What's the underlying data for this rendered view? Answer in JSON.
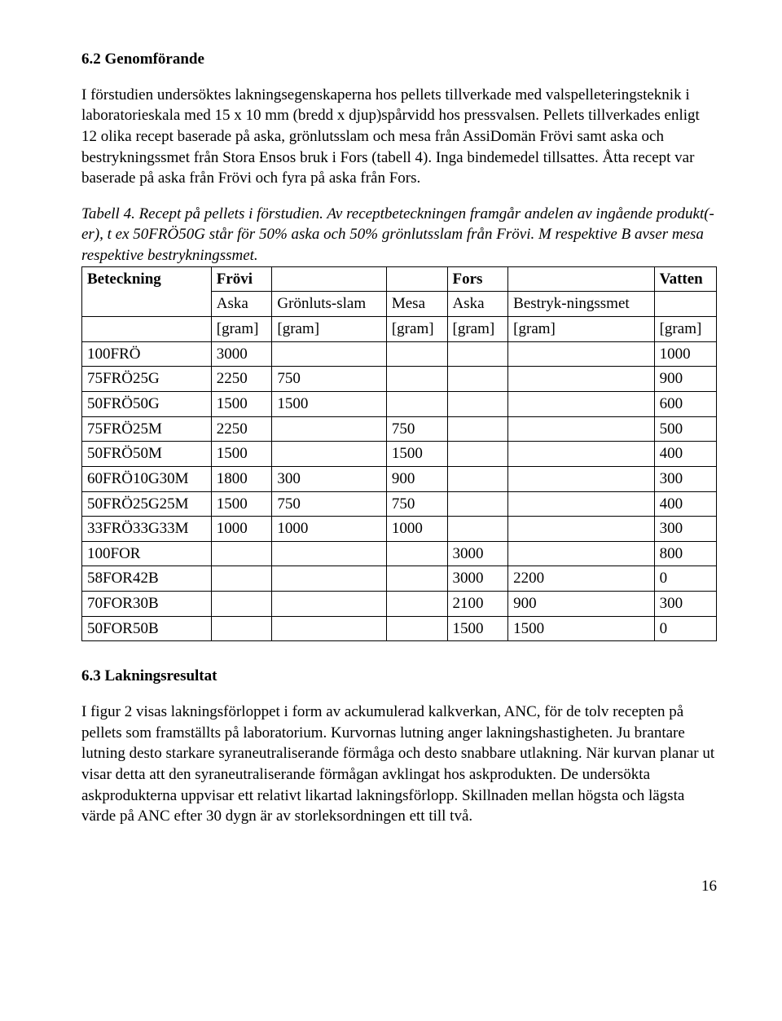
{
  "section1": {
    "heading": "6.2 Genomförande",
    "p1": "I förstudien undersöktes lakningsegenskaperna hos pellets tillverkade med valspelleteringsteknik i laboratorieskala med 15 x 10 mm (bredd x djup)spårvidd hos pressvalsen. Pellets tillverkades enligt 12 olika recept baserade på aska, grönlutsslam och mesa från AssiDomän Frövi samt aska och bestrykningssmet från Stora Ensos bruk i Fors (tabell 4). Inga bindemedel tillsattes. Åtta recept var baserade på aska från Frövi och fyra på aska från Fors.",
    "caption": "Tabell 4. Recept på pellets i förstudien. Av receptbeteckningen framgår andelen av ingående produkt(-er), t ex 50FRÖ50G står för 50% aska och 50% grönlutsslam från Frövi. M respektive B avser mesa respektive bestrykningssmet."
  },
  "table": {
    "header": {
      "beteckning": "Beteckning",
      "frovi": "Frövi",
      "fors": "Fors",
      "vatten": "Vatten",
      "aska": "Aska",
      "gronluts": "Grönluts-slam",
      "mesa": "Mesa",
      "bestryk": "Bestryk-ningssmet",
      "gram": "[gram]"
    },
    "rows": [
      {
        "b": "100FRÖ",
        "c1": "3000",
        "c2": "",
        "c3": "",
        "c4": "",
        "c5": "",
        "c6": "1000"
      },
      {
        "b": "75FRÖ25G",
        "c1": "2250",
        "c2": "750",
        "c3": "",
        "c4": "",
        "c5": "",
        "c6": "900"
      },
      {
        "b": "50FRÖ50G",
        "c1": "1500",
        "c2": "1500",
        "c3": "",
        "c4": "",
        "c5": "",
        "c6": "600"
      },
      {
        "b": "75FRÖ25M",
        "c1": "2250",
        "c2": "",
        "c3": "750",
        "c4": "",
        "c5": "",
        "c6": "500"
      },
      {
        "b": "50FRÖ50M",
        "c1": "1500",
        "c2": "",
        "c3": "1500",
        "c4": "",
        "c5": "",
        "c6": "400"
      },
      {
        "b": "60FRÖ10G30M",
        "c1": "1800",
        "c2": "300",
        "c3": "900",
        "c4": "",
        "c5": "",
        "c6": "300"
      },
      {
        "b": "50FRÖ25G25M",
        "c1": "1500",
        "c2": "750",
        "c3": "750",
        "c4": "",
        "c5": "",
        "c6": "400"
      },
      {
        "b": "33FRÖ33G33M",
        "c1": "1000",
        "c2": "1000",
        "c3": "1000",
        "c4": "",
        "c5": "",
        "c6": "300"
      },
      {
        "b": "100FOR",
        "c1": "",
        "c2": "",
        "c3": "",
        "c4": "3000",
        "c5": "",
        "c6": "800"
      },
      {
        "b": "58FOR42B",
        "c1": "",
        "c2": "",
        "c3": "",
        "c4": "3000",
        "c5": "2200",
        "c6": "0"
      },
      {
        "b": "70FOR30B",
        "c1": "",
        "c2": "",
        "c3": "",
        "c4": "2100",
        "c5": "900",
        "c6": "300"
      },
      {
        "b": "50FOR50B",
        "c1": "",
        "c2": "",
        "c3": "",
        "c4": "1500",
        "c5": "1500",
        "c6": "0"
      }
    ]
  },
  "section2": {
    "heading": "6.3 Lakningsresultat",
    "p1": "I figur 2 visas lakningsförloppet i form av ackumulerad kalkverkan, ANC, för de tolv recepten på pellets som framställts på laboratorium. Kurvornas lutning anger lakningshastigheten. Ju brantare lutning desto starkare syraneutraliserande förmåga och desto snabbare utlakning. När kurvan planar ut visar detta att den syraneutraliserande förmågan avklingat hos askprodukten. De undersökta askprodukterna uppvisar ett relativt likartad lakningsförlopp. Skillnaden mellan högsta och lägsta värde på ANC efter 30 dygn är av storleksordningen ett till två."
  },
  "pageNumber": "16"
}
